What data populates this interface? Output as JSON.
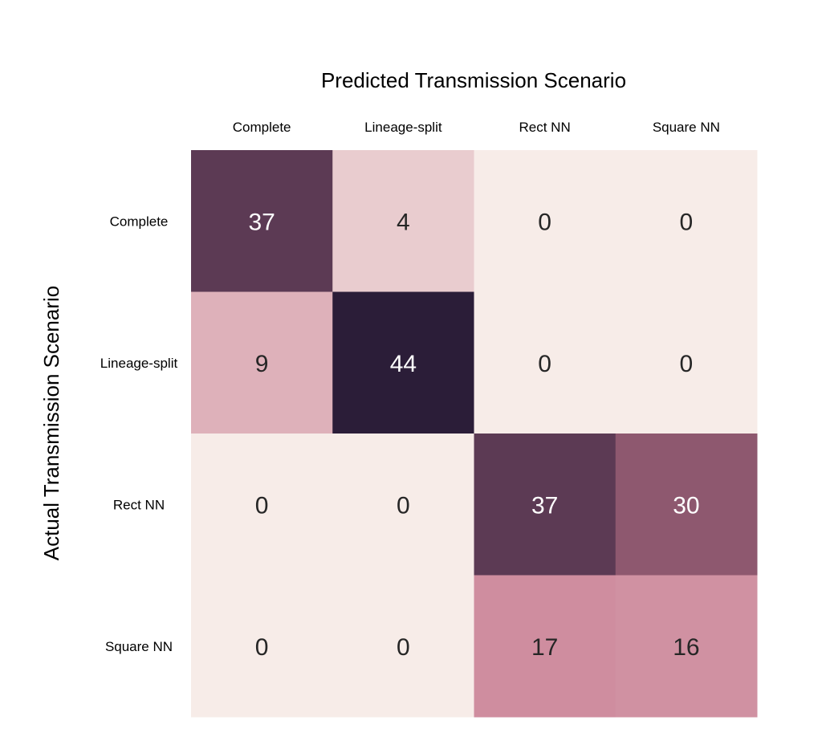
{
  "chart_data": {
    "type": "heatmap",
    "title": "Predicted Transmission Scenario",
    "xlabel": "",
    "ylabel": "Actual Transmission Scenario",
    "x_categories": [
      "Complete",
      "Lineage-split",
      "Rect NN",
      "Square NN"
    ],
    "y_categories": [
      "Complete",
      "Lineage-split",
      "Rect NN",
      "Square NN"
    ],
    "values": [
      [
        37,
        4,
        0,
        0
      ],
      [
        9,
        44,
        0,
        0
      ],
      [
        0,
        0,
        37,
        30
      ],
      [
        0,
        0,
        17,
        16
      ]
    ],
    "x_axis_position": "top",
    "colorscale": {
      "low": "#f7ece8",
      "mid": "#c6798f",
      "high": "#2b1d38"
    },
    "value_range": [
      0,
      44
    ],
    "grid": false,
    "legend": "none"
  }
}
